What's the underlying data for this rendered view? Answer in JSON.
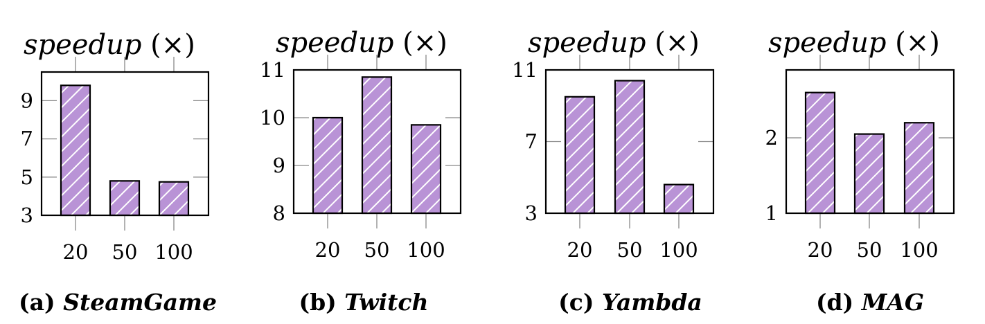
{
  "colors": {
    "bar_fill": "#b993d6",
    "hatch": "#ffffff",
    "axis": "#000000",
    "tick": "#888888"
  },
  "chart_data": [
    {
      "type": "bar",
      "ylabel": "speedup (×)",
      "ylabel_italic": "speedup",
      "ylabel_unit": "(×)",
      "caption_prefix": "(a)",
      "caption_name": "SteamGame",
      "categories": [
        "20",
        "50",
        "100"
      ],
      "values": [
        9.8,
        4.8,
        4.75
      ],
      "ylim": [
        3,
        10.5
      ],
      "yticks": [
        3,
        5,
        7,
        9
      ],
      "ytick_labels": [
        "3",
        "5",
        "7",
        "9"
      ]
    },
    {
      "type": "bar",
      "ylabel": "speedup (×)",
      "ylabel_italic": "speedup",
      "ylabel_unit": "(×)",
      "caption_prefix": "(b)",
      "caption_name": "Twitch",
      "categories": [
        "20",
        "50",
        "100"
      ],
      "values": [
        10.0,
        10.85,
        9.85
      ],
      "ylim": [
        8,
        11
      ],
      "yticks": [
        8,
        9,
        10,
        11
      ],
      "ytick_labels": [
        "8",
        "9",
        "10",
        "11"
      ]
    },
    {
      "type": "bar",
      "ylabel": "speedup (×)",
      "ylabel_italic": "speedup",
      "ylabel_unit": "(×)",
      "caption_prefix": "(c)",
      "caption_name": "Yambda",
      "categories": [
        "20",
        "50",
        "100"
      ],
      "values": [
        9.5,
        10.4,
        4.6
      ],
      "ylim": [
        3,
        11
      ],
      "yticks": [
        3,
        7,
        11
      ],
      "ytick_labels": [
        "3",
        "7",
        "11"
      ]
    },
    {
      "type": "bar",
      "ylabel": "speedup (×)",
      "ylabel_italic": "speedup",
      "ylabel_unit": "(×)",
      "caption_prefix": "(d)",
      "caption_name": "MAG",
      "categories": [
        "20",
        "50",
        "100"
      ],
      "values": [
        2.6,
        2.05,
        2.2
      ],
      "ylim": [
        1,
        2.9
      ],
      "yticks": [
        1,
        2
      ],
      "ytick_labels": [
        "1",
        "2"
      ]
    }
  ]
}
